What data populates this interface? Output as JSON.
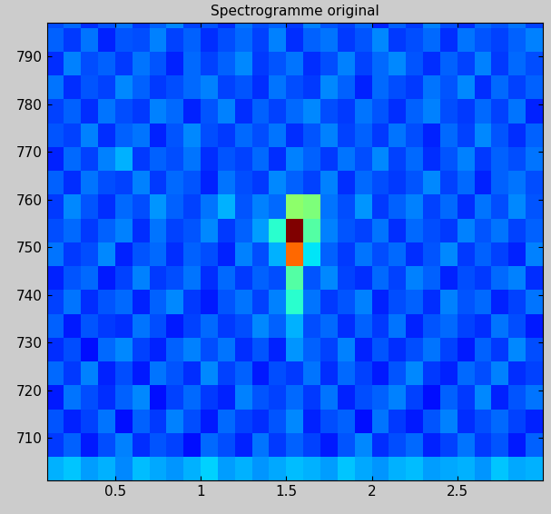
{
  "chart_data": {
    "type": "heatmap",
    "title": "Spectrogramme original",
    "x": [
      0.15,
      0.25,
      0.35,
      0.45,
      0.55,
      0.65,
      0.75,
      0.85,
      0.95,
      1.05,
      1.15,
      1.25,
      1.35,
      1.45,
      1.55,
      1.65,
      1.75,
      1.85,
      1.95,
      2.05,
      2.15,
      2.25,
      2.35,
      2.45,
      2.55,
      2.65,
      2.75,
      2.85,
      2.95
    ],
    "y": [
      703.5,
      708.5,
      713.5,
      718.5,
      723.5,
      728.5,
      733.5,
      738.5,
      743.5,
      748.5,
      753.5,
      758.5,
      763.5,
      768.5,
      773.5,
      778.5,
      783.5,
      788.5,
      793.5,
      798.5
    ],
    "xlim": [
      0.1,
      3.0
    ],
    "ylim": [
      701,
      797
    ],
    "xticks": [
      0.5,
      1,
      1.5,
      2,
      2.5
    ],
    "yticks": [
      710,
      720,
      730,
      740,
      750,
      760,
      770,
      780,
      790
    ],
    "clim": [
      0,
      1
    ],
    "cells": [
      [
        0.3,
        0.32,
        0.28,
        0.3,
        0.26,
        0.31,
        0.29,
        0.27,
        0.3,
        0.33,
        0.28,
        0.3,
        0.27,
        0.29,
        0.31,
        0.3,
        0.28,
        0.32,
        0.29,
        0.27,
        0.3,
        0.31,
        0.28,
        0.29,
        0.3,
        0.27,
        0.32,
        0.29,
        0.3
      ],
      [
        0.18,
        0.22,
        0.15,
        0.2,
        0.25,
        0.17,
        0.21,
        0.19,
        0.14,
        0.23,
        0.2,
        0.16,
        0.24,
        0.18,
        0.22,
        0.19,
        0.15,
        0.21,
        0.26,
        0.17,
        0.2,
        0.23,
        0.16,
        0.19,
        0.24,
        0.18,
        0.21,
        0.15,
        0.22
      ],
      [
        0.21,
        0.16,
        0.19,
        0.24,
        0.14,
        0.22,
        0.18,
        0.25,
        0.2,
        0.15,
        0.23,
        0.19,
        0.17,
        0.21,
        0.26,
        0.16,
        0.2,
        0.22,
        0.14,
        0.24,
        0.18,
        0.15,
        0.21,
        0.25,
        0.17,
        0.2,
        0.23,
        0.19,
        0.16
      ],
      [
        0.15,
        0.24,
        0.2,
        0.17,
        0.22,
        0.26,
        0.14,
        0.19,
        0.23,
        0.18,
        0.16,
        0.25,
        0.21,
        0.19,
        0.23,
        0.18,
        0.24,
        0.16,
        0.2,
        0.22,
        0.25,
        0.19,
        0.14,
        0.22,
        0.18,
        0.26,
        0.16,
        0.21,
        0.24
      ],
      [
        0.23,
        0.18,
        0.25,
        0.16,
        0.2,
        0.15,
        0.24,
        0.21,
        0.17,
        0.26,
        0.19,
        0.22,
        0.15,
        0.2,
        0.18,
        0.24,
        0.17,
        0.23,
        0.19,
        0.15,
        0.21,
        0.26,
        0.18,
        0.16,
        0.23,
        0.2,
        0.25,
        0.17,
        0.19
      ],
      [
        0.17,
        0.2,
        0.14,
        0.23,
        0.26,
        0.19,
        0.16,
        0.22,
        0.25,
        0.2,
        0.24,
        0.17,
        0.21,
        0.16,
        0.27,
        0.22,
        0.19,
        0.25,
        0.16,
        0.21,
        0.17,
        0.2,
        0.24,
        0.19,
        0.15,
        0.22,
        0.18,
        0.26,
        0.2
      ],
      [
        0.22,
        0.15,
        0.21,
        0.18,
        0.17,
        0.24,
        0.2,
        0.15,
        0.19,
        0.23,
        0.18,
        0.2,
        0.26,
        0.22,
        0.3,
        0.2,
        0.23,
        0.17,
        0.22,
        0.18,
        0.24,
        0.16,
        0.21,
        0.23,
        0.19,
        0.17,
        0.24,
        0.2,
        0.15
      ],
      [
        0.19,
        0.24,
        0.17,
        0.21,
        0.23,
        0.16,
        0.22,
        0.26,
        0.18,
        0.15,
        0.21,
        0.24,
        0.19,
        0.25,
        0.4,
        0.24,
        0.18,
        0.21,
        0.25,
        0.16,
        0.2,
        0.22,
        0.17,
        0.25,
        0.21,
        0.23,
        0.16,
        0.19,
        0.24
      ],
      [
        0.16,
        0.21,
        0.23,
        0.15,
        0.19,
        0.25,
        0.18,
        0.2,
        0.24,
        0.17,
        0.23,
        0.18,
        0.22,
        0.2,
        0.45,
        0.21,
        0.26,
        0.19,
        0.17,
        0.23,
        0.19,
        0.25,
        0.22,
        0.16,
        0.2,
        0.18,
        0.23,
        0.25,
        0.17
      ],
      [
        0.24,
        0.18,
        0.2,
        0.26,
        0.16,
        0.21,
        0.23,
        0.17,
        0.22,
        0.2,
        0.16,
        0.25,
        0.2,
        0.3,
        0.8,
        0.35,
        0.22,
        0.18,
        0.24,
        0.2,
        0.23,
        0.17,
        0.21,
        0.26,
        0.18,
        0.22,
        0.19,
        0.16,
        0.25
      ],
      [
        0.2,
        0.23,
        0.18,
        0.22,
        0.25,
        0.17,
        0.24,
        0.19,
        0.21,
        0.26,
        0.18,
        0.22,
        0.28,
        0.4,
        1.0,
        0.45,
        0.25,
        0.21,
        0.19,
        0.24,
        0.17,
        0.23,
        0.2,
        0.18,
        0.25,
        0.21,
        0.24,
        0.19,
        0.22
      ],
      [
        0.18,
        0.26,
        0.21,
        0.17,
        0.23,
        0.2,
        0.27,
        0.22,
        0.19,
        0.24,
        0.3,
        0.21,
        0.25,
        0.23,
        0.52,
        0.5,
        0.24,
        0.2,
        0.27,
        0.18,
        0.22,
        0.25,
        0.19,
        0.23,
        0.17,
        0.24,
        0.2,
        0.26,
        0.21
      ],
      [
        0.22,
        0.17,
        0.24,
        0.2,
        0.19,
        0.25,
        0.18,
        0.23,
        0.21,
        0.16,
        0.24,
        0.2,
        0.18,
        0.26,
        0.22,
        0.19,
        0.25,
        0.17,
        0.23,
        0.2,
        0.18,
        0.21,
        0.26,
        0.19,
        0.23,
        0.16,
        0.22,
        0.24,
        0.2
      ],
      [
        0.16,
        0.23,
        0.19,
        0.25,
        0.3,
        0.18,
        0.22,
        0.2,
        0.24,
        0.17,
        0.21,
        0.19,
        0.23,
        0.17,
        0.25,
        0.22,
        0.18,
        0.24,
        0.2,
        0.26,
        0.19,
        0.23,
        0.17,
        0.21,
        0.25,
        0.18,
        0.22,
        0.2,
        0.24
      ],
      [
        0.21,
        0.19,
        0.25,
        0.17,
        0.22,
        0.24,
        0.16,
        0.21,
        0.26,
        0.2,
        0.18,
        0.23,
        0.2,
        0.24,
        0.17,
        0.21,
        0.25,
        0.19,
        0.22,
        0.18,
        0.24,
        0.2,
        0.16,
        0.23,
        0.19,
        0.26,
        0.21,
        0.17,
        0.22
      ],
      [
        0.19,
        0.22,
        0.17,
        0.24,
        0.2,
        0.18,
        0.25,
        0.23,
        0.16,
        0.21,
        0.25,
        0.17,
        0.22,
        0.19,
        0.23,
        0.26,
        0.2,
        0.18,
        0.24,
        0.21,
        0.17,
        0.22,
        0.25,
        0.2,
        0.18,
        0.23,
        0.19,
        0.24,
        0.16
      ],
      [
        0.24,
        0.17,
        0.21,
        0.19,
        0.26,
        0.22,
        0.18,
        0.2,
        0.23,
        0.25,
        0.19,
        0.21,
        0.17,
        0.24,
        0.2,
        0.18,
        0.26,
        0.22,
        0.16,
        0.23,
        0.2,
        0.18,
        0.24,
        0.21,
        0.26,
        0.17,
        0.23,
        0.19,
        0.22
      ],
      [
        0.17,
        0.25,
        0.2,
        0.22,
        0.18,
        0.24,
        0.21,
        0.16,
        0.23,
        0.19,
        0.22,
        0.26,
        0.18,
        0.21,
        0.24,
        0.17,
        0.2,
        0.25,
        0.19,
        0.23,
        0.26,
        0.21,
        0.17,
        0.22,
        0.19,
        0.25,
        0.18,
        0.23,
        0.2
      ],
      [
        0.22,
        0.18,
        0.24,
        0.16,
        0.21,
        0.2,
        0.25,
        0.19,
        0.22,
        0.17,
        0.2,
        0.23,
        0.19,
        0.25,
        0.17,
        0.22,
        0.24,
        0.18,
        0.21,
        0.26,
        0.18,
        0.2,
        0.23,
        0.17,
        0.24,
        0.21,
        0.19,
        0.22,
        0.25
      ],
      [
        0.2,
        0.23,
        0.17,
        0.21,
        0.24,
        0.18,
        0.22,
        0.26,
        0.19,
        0.21,
        0.17,
        0.24,
        0.2,
        0.22,
        0.18,
        0.25,
        0.21,
        0.19,
        0.23,
        0.16,
        0.22,
        0.18,
        0.25,
        0.2,
        0.17,
        0.23,
        0.21,
        0.24,
        0.19
      ]
    ]
  }
}
